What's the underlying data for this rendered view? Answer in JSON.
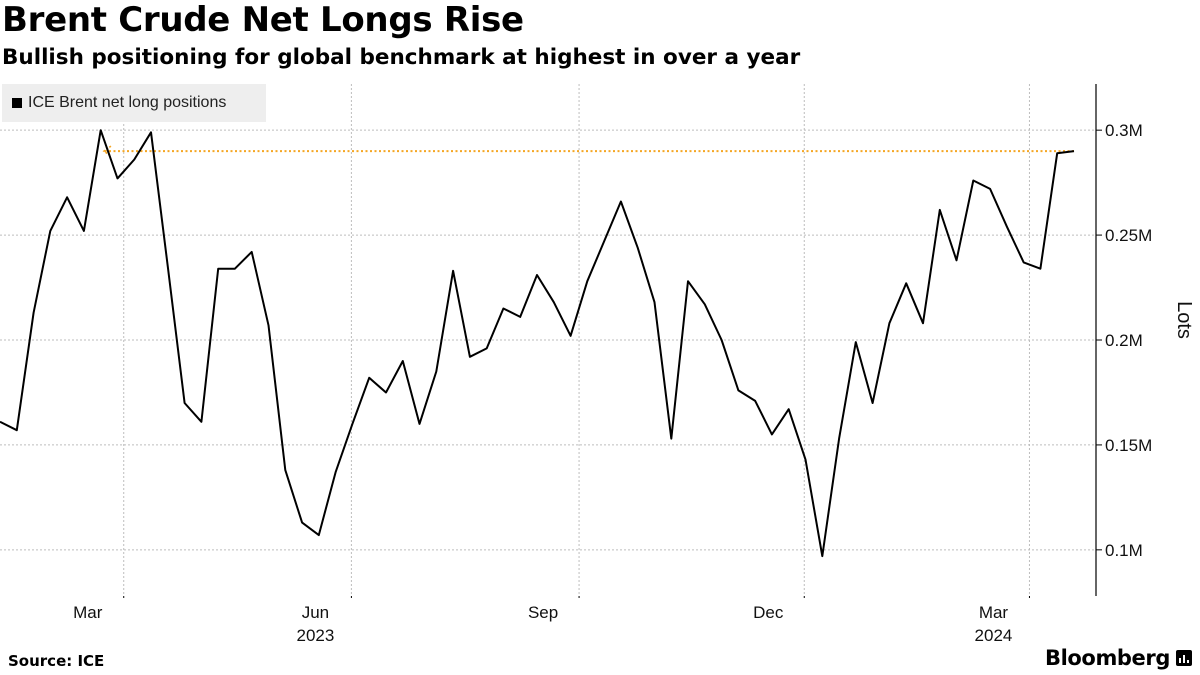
{
  "header": {
    "title": "Brent Crude Net Longs Rise",
    "subtitle": "Bullish positioning for global benchmark at highest in over a year"
  },
  "footer": {
    "source": "Source: ICE",
    "brand": "Bloomberg"
  },
  "colors": {
    "line": "#000000",
    "grid": "#bdbdbd",
    "highlight": "#f5a623",
    "legend_bg": "#eeeeee"
  },
  "chart_data": {
    "type": "line",
    "title": "Brent Crude Net Longs Rise",
    "ylabel": "Lots",
    "xlabel": "",
    "legend": {
      "position": "top-left",
      "entries": [
        "ICE Brent net long positions"
      ]
    },
    "ylim": [
      0.078,
      0.322
    ],
    "y_ticks": [
      {
        "value": 0.1,
        "label": "0.1M"
      },
      {
        "value": 0.15,
        "label": "0.15M"
      },
      {
        "value": 0.2,
        "label": "0.2M"
      },
      {
        "value": 0.25,
        "label": "0.25M"
      },
      {
        "value": 0.3,
        "label": "0.3M"
      }
    ],
    "x_domain": [
      "2023-01-10",
      "2024-03-19"
    ],
    "x_ticks": [
      {
        "date": "2023-03-01",
        "label": "Mar"
      },
      {
        "date": "2023-06-01",
        "label": "Jun"
      },
      {
        "date": "2023-09-01",
        "label": "Sep"
      },
      {
        "date": "2023-12-01",
        "label": "Dec"
      },
      {
        "date": "2024-03-01",
        "label": "Mar"
      }
    ],
    "year_labels": [
      {
        "label": "2023",
        "under": "Jun"
      },
      {
        "label": "2024",
        "under": "Mar"
      }
    ],
    "annotation": {
      "type": "dotted-arrow",
      "value": 0.29,
      "from": "2024-03-19",
      "to": "2023-02-21",
      "note": "highest in over a year"
    },
    "series": [
      {
        "name": "ICE Brent net long positions",
        "values": [
          0.161,
          0.157,
          0.213,
          0.252,
          0.268,
          0.252,
          0.3,
          0.277,
          0.286,
          0.299,
          0.235,
          0.17,
          0.161,
          0.234,
          0.234,
          0.242,
          0.207,
          0.138,
          0.113,
          0.107,
          0.137,
          0.16,
          0.182,
          0.175,
          0.19,
          0.16,
          0.185,
          0.233,
          0.192,
          0.196,
          0.215,
          0.211,
          0.231,
          0.218,
          0.202,
          0.228,
          0.247,
          0.266,
          0.244,
          0.218,
          0.153,
          0.228,
          0.217,
          0.2,
          0.176,
          0.171,
          0.155,
          0.167,
          0.143,
          0.097,
          0.153,
          0.199,
          0.17,
          0.208,
          0.227,
          0.208,
          0.262,
          0.238,
          0.276,
          0.272,
          0.254,
          0.237,
          0.234,
          0.289,
          0.29
        ]
      }
    ]
  }
}
